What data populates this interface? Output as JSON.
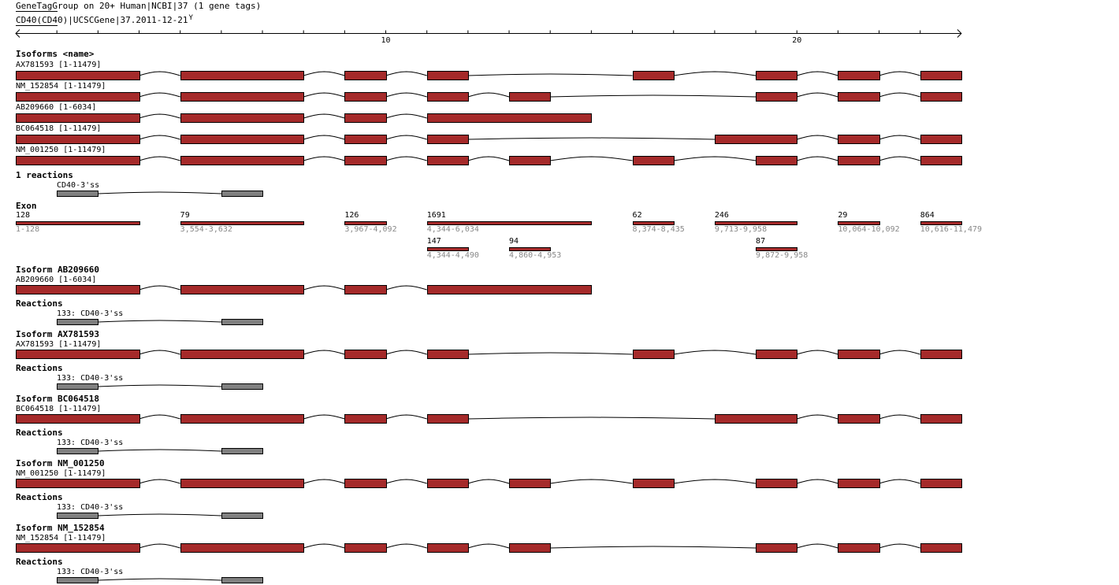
{
  "header": {
    "title": "GeneTagGroup on 20+ Human|NCBI|37 (1 gene tags)",
    "gene": "CD40(CD40)|UCSCGene|37.2011-12-21",
    "gene_suffix": "Y"
  },
  "ruler": {
    "labels": [
      {
        "text": "10",
        "unit": 9
      },
      {
        "text": "20",
        "unit": 19
      }
    ],
    "units": 23
  },
  "colors": {
    "exon": "#a52a2a",
    "reaction": "#808080"
  },
  "isoforms_title": "Isoforms <name>",
  "isoforms": [
    {
      "label": "AX781593 [1-11479]",
      "exons": [
        [
          0,
          3
        ],
        [
          4,
          7
        ],
        [
          8,
          9
        ],
        [
          10,
          11
        ],
        [
          15,
          16
        ],
        [
          18,
          19
        ],
        [
          20,
          21
        ],
        [
          22,
          23
        ]
      ]
    },
    {
      "label": "NM_152854 [1-11479]",
      "exons": [
        [
          0,
          3
        ],
        [
          4,
          7
        ],
        [
          8,
          9
        ],
        [
          10,
          11
        ],
        [
          12,
          13
        ],
        [
          18,
          19
        ],
        [
          20,
          21
        ],
        [
          22,
          23
        ]
      ]
    },
    {
      "label": "AB209660 [1-6034]",
      "exons": [
        [
          0,
          3
        ],
        [
          4,
          7
        ],
        [
          8,
          9
        ],
        [
          10,
          14
        ]
      ]
    },
    {
      "label": "BC064518 [1-11479]",
      "exons": [
        [
          0,
          3
        ],
        [
          4,
          7
        ],
        [
          8,
          9
        ],
        [
          10,
          11
        ],
        [
          17,
          19
        ],
        [
          20,
          21
        ],
        [
          22,
          23
        ]
      ]
    },
    {
      "label": "NM_001250 [1-11479]",
      "exons": [
        [
          0,
          3
        ],
        [
          4,
          7
        ],
        [
          8,
          9
        ],
        [
          10,
          11
        ],
        [
          12,
          13
        ],
        [
          15,
          16
        ],
        [
          18,
          19
        ],
        [
          20,
          21
        ],
        [
          22,
          23
        ]
      ]
    }
  ],
  "reactions_title": "1 reactions",
  "reaction": {
    "label": "CD40-3'ss",
    "numbered_label": "133: CD40-3'ss",
    "blocks": [
      [
        1,
        2
      ],
      [
        5,
        6
      ]
    ]
  },
  "exon_title": "Exon",
  "exons": [
    {
      "len": "128",
      "range": "1-128",
      "span": [
        0,
        3
      ],
      "row": 0
    },
    {
      "len": "79",
      "range": "3,554-3,632",
      "span": [
        4,
        7
      ],
      "row": 0
    },
    {
      "len": "126",
      "range": "3,967-4,092",
      "span": [
        8,
        9
      ],
      "row": 0
    },
    {
      "len": "1691",
      "range": "4,344-6,034",
      "span": [
        10,
        14
      ],
      "row": 0
    },
    {
      "len": "62",
      "range": "8,374-8,435",
      "span": [
        15,
        16
      ],
      "row": 0
    },
    {
      "len": "246",
      "range": "9,713-9,958",
      "span": [
        17,
        19
      ],
      "row": 0
    },
    {
      "len": "29",
      "range": "10,064-10,092",
      "span": [
        20,
        21
      ],
      "row": 0
    },
    {
      "len": "864",
      "range": "10,616-11,479",
      "span": [
        22,
        23
      ],
      "row": 0
    },
    {
      "len": "147",
      "range": "4,344-4,490",
      "span": [
        10,
        11
      ],
      "row": 1
    },
    {
      "len": "94",
      "range": "4,860-4,953",
      "span": [
        12,
        13
      ],
      "row": 1
    },
    {
      "len": "87",
      "range": "9,872-9,958",
      "span": [
        18,
        19
      ],
      "row": 1
    }
  ],
  "sections": [
    {
      "title": "Isoform AB209660",
      "iso": 2
    },
    {
      "title": "Isoform AX781593",
      "iso": 0
    },
    {
      "title": "Isoform BC064518",
      "iso": 3
    },
    {
      "title": "Isoform NM_001250",
      "iso": 4
    },
    {
      "title": "Isoform NM_152854",
      "iso": 1
    }
  ],
  "section_reactions_title": "Reactions"
}
